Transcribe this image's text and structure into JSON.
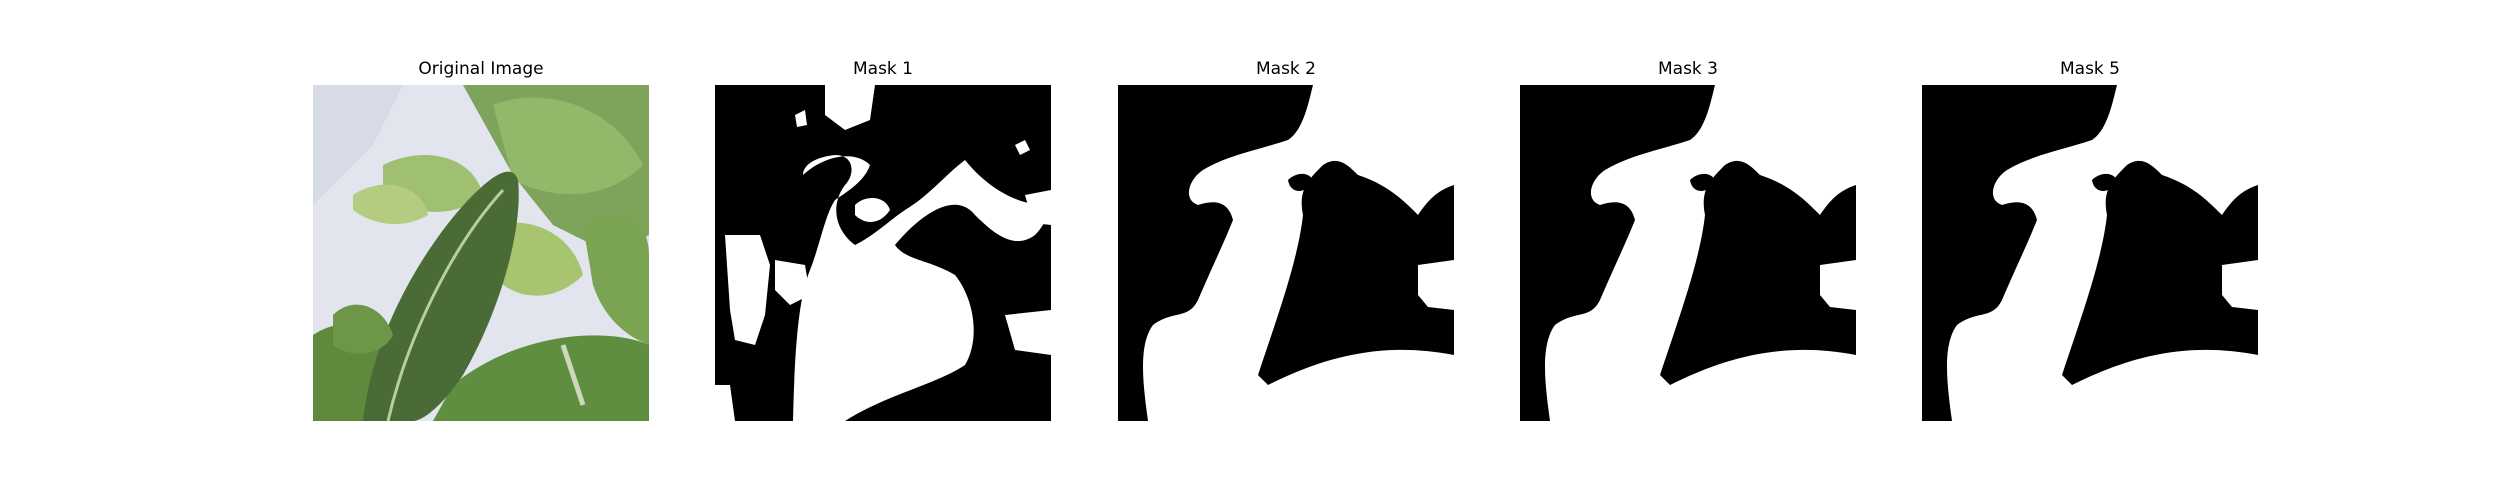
{
  "figure": {
    "panels": [
      {
        "title": "Original Image",
        "content": "photo-plant-leaves"
      },
      {
        "title": "Mask 1",
        "content": "binary-mask"
      },
      {
        "title": "Mask 2",
        "content": "binary-mask"
      },
      {
        "title": "Mask 3",
        "content": "binary-mask"
      },
      {
        "title": "Mask 5",
        "content": "binary-mask"
      }
    ]
  },
  "colors": {
    "mask_background": "#000000",
    "mask_foreground": "#ffffff",
    "background_paper": "#e4e6ee",
    "leaf_dark": "#3d5a2c",
    "leaf_mid": "#6f9a4c",
    "leaf_light": "#a8c67a"
  }
}
